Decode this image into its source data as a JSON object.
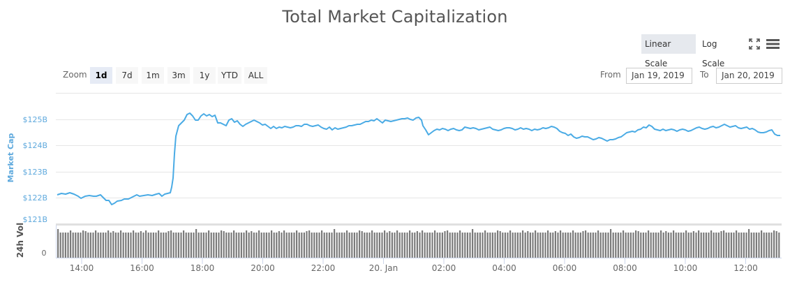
{
  "title": "Total Market Capitalization",
  "toolbar": {
    "scale_options": [
      {
        "label": "Linear Scale",
        "active": true
      },
      {
        "label": "Log Scale",
        "active": false
      }
    ],
    "fullscreen_icon": "fullscreen-icon",
    "menu_icon": "hamburger-menu-icon"
  },
  "range_selector": {
    "zoom_label": "Zoom",
    "buttons": [
      {
        "label": "1d",
        "active": true
      },
      {
        "label": "7d",
        "active": false
      },
      {
        "label": "1m",
        "active": false
      },
      {
        "label": "3m",
        "active": false
      },
      {
        "label": "1y",
        "active": false
      },
      {
        "label": "YTD",
        "active": false
      },
      {
        "label": "ALL",
        "active": false
      }
    ],
    "from_label": "From",
    "from_value": "Jan 19, 2019",
    "to_label": "To",
    "to_value": "Jan 20, 2019"
  },
  "colors": {
    "line": "#4aabe5",
    "axis_label": "#5ea9dd",
    "volume_bar": "#7a7a7a",
    "grid": "#e6e6e6"
  },
  "chart_data": {
    "type": "line",
    "title": "Total Market Capitalization",
    "ylabel": "Market Cap",
    "y_ticks": [
      "$121B",
      "$122B",
      "$123B",
      "$124B",
      "$125B"
    ],
    "ylim": [
      121,
      126.5
    ],
    "x_ticks": [
      "14:00",
      "16:00",
      "18:00",
      "20:00",
      "22:00",
      "20. Jan",
      "02:00",
      "04:00",
      "06:00",
      "08:00",
      "10:00",
      "12:00"
    ],
    "grid": true,
    "series": [
      {
        "name": "Market Cap ($B)",
        "x": [
          "13:10",
          "13:30",
          "13:50",
          "14:10",
          "14:30",
          "14:50",
          "15:10",
          "15:20",
          "15:40",
          "16:00",
          "16:20",
          "16:40",
          "16:50",
          "17:00",
          "17:05",
          "17:10",
          "17:20",
          "17:30",
          "17:40",
          "17:50",
          "18:00",
          "18:10",
          "18:30",
          "18:50",
          "19:10",
          "19:30",
          "19:50",
          "20:10",
          "20:30",
          "20:50",
          "21:10",
          "21:30",
          "21:50",
          "22:10",
          "22:30",
          "22:50",
          "23:10",
          "23:30",
          "23:50",
          "00:10",
          "00:30",
          "00:50",
          "01:10",
          "01:20",
          "01:30",
          "01:50",
          "02:10",
          "02:30",
          "02:50",
          "03:10",
          "03:30",
          "03:50",
          "04:10",
          "04:30",
          "04:50",
          "05:10",
          "05:30",
          "05:50",
          "06:10",
          "06:30",
          "06:50",
          "07:10",
          "07:30",
          "07:50",
          "08:10",
          "08:30",
          "08:50",
          "09:10",
          "09:30",
          "09:50",
          "10:10",
          "10:30",
          "10:50",
          "11:10",
          "11:30",
          "11:50",
          "12:10",
          "12:30",
          "12:50",
          "13:10"
        ],
        "values": [
          122.1,
          122.15,
          122.1,
          122.0,
          122.05,
          122.05,
          121.8,
          121.75,
          121.95,
          122.1,
          122.05,
          122.1,
          122.2,
          122.6,
          124.3,
          124.8,
          124.95,
          125.2,
          125.05,
          125.2,
          125.1,
          124.9,
          124.85,
          125.05,
          124.9,
          124.95,
          124.8,
          124.7,
          124.75,
          124.8,
          124.8,
          124.7,
          124.75,
          124.8,
          124.85,
          124.95,
          125.0,
          124.95,
          125.0,
          125.05,
          124.3,
          124.55,
          124.55,
          124.6,
          124.7,
          124.6,
          124.55,
          124.7,
          124.65,
          124.55,
          124.7,
          124.6,
          124.55,
          124.65,
          124.45,
          124.25,
          124.3,
          124.2,
          124.25,
          124.35,
          124.5,
          124.6,
          124.75,
          124.7,
          124.6,
          124.6,
          124.55,
          124.65,
          124.55,
          124.65,
          124.7,
          124.75,
          124.7,
          124.75,
          124.65,
          124.6,
          124.5,
          124.45,
          124.55,
          124.4
        ]
      },
      {
        "name": "24h Vol",
        "ylabel": "24h Vol",
        "y_ticks": [
          "0"
        ],
        "type": "bar",
        "note": "roughly uniform volume bars across the full day, approx 5-minute intervals"
      }
    ]
  }
}
